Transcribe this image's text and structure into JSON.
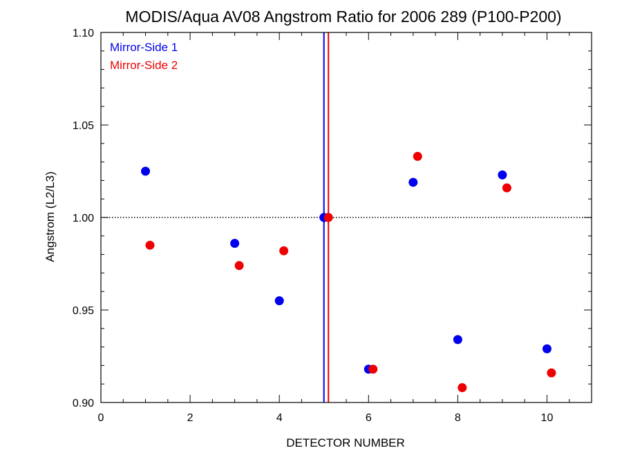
{
  "chart_data": {
    "type": "scatter",
    "title": "MODIS/Aqua AV08 Angstrom Ratio for 2006 289 (P100-P200)",
    "xlabel": "DETECTOR NUMBER",
    "ylabel": "Angstrom (L2/L3)",
    "xlim": [
      0,
      11
    ],
    "ylim": [
      0.9,
      1.1
    ],
    "xticks": [
      0,
      2,
      4,
      6,
      8,
      10
    ],
    "xtick_labels": [
      "0",
      "2",
      "4",
      "6",
      "8",
      "10"
    ],
    "yticks": [
      0.9,
      0.95,
      1.0,
      1.05,
      1.1
    ],
    "ytick_labels": [
      "0.90",
      "0.95",
      "1.00",
      "1.05",
      "1.10"
    ],
    "reference_line_y": 1.0,
    "vertical_lines": [
      {
        "x": 5.0,
        "color": "#0000ee"
      },
      {
        "x": 5.1,
        "color": "#ee0000"
      }
    ],
    "legend_position": "top-left",
    "series": [
      {
        "name": "Mirror-Side 1",
        "color": "#0000ee",
        "points": [
          {
            "x": 1,
            "y": 1.025
          },
          {
            "x": 3,
            "y": 0.986
          },
          {
            "x": 4,
            "y": 0.955
          },
          {
            "x": 5,
            "y": 1.0
          },
          {
            "x": 6,
            "y": 0.918
          },
          {
            "x": 7,
            "y": 1.019
          },
          {
            "x": 8,
            "y": 0.934
          },
          {
            "x": 9,
            "y": 1.023
          },
          {
            "x": 10,
            "y": 0.929
          }
        ]
      },
      {
        "name": "Mirror-Side 2",
        "color": "#ee0000",
        "points": [
          {
            "x": 1.1,
            "y": 0.985
          },
          {
            "x": 3.1,
            "y": 0.974
          },
          {
            "x": 4.1,
            "y": 0.982
          },
          {
            "x": 5.1,
            "y": 1.0
          },
          {
            "x": 6.1,
            "y": 0.918
          },
          {
            "x": 7.1,
            "y": 1.033
          },
          {
            "x": 8.1,
            "y": 0.908
          },
          {
            "x": 9.1,
            "y": 1.016
          },
          {
            "x": 10.1,
            "y": 0.916
          }
        ]
      }
    ]
  }
}
